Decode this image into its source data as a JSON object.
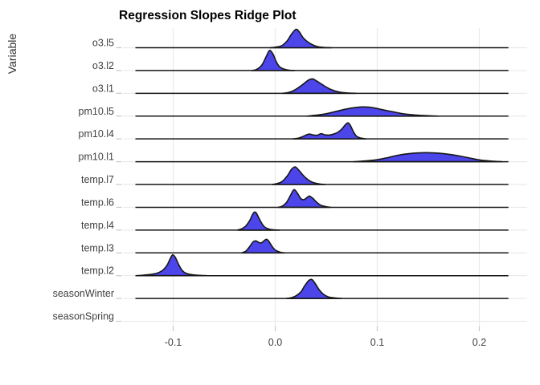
{
  "title": "Regression Slopes Ridge Plot",
  "y_axis_title": "Variable",
  "chart_data": {
    "type": "ridgeline",
    "title": "Regression Slopes Ridge Plot",
    "xlabel": "",
    "ylabel": "Variable",
    "legend_position": "none",
    "grid": true,
    "x_tick_values": [
      -0.1,
      0.0,
      0.1,
      0.2
    ],
    "x_tick_labels": [
      "-0.1",
      "0.0",
      "0.1",
      "0.2"
    ],
    "x_range": [
      -0.147,
      0.247
    ],
    "baseline_extent": [
      -0.137,
      0.2285
    ],
    "height_units": "px",
    "categories": [
      "o3.l5",
      "o3.l2",
      "o3.l1",
      "pm10.l5",
      "pm10.l4",
      "pm10.l1",
      "temp.l7",
      "temp.l6",
      "temp.l4",
      "temp.l3",
      "temp.l2",
      "seasonWinter",
      "seasonSpring"
    ],
    "colors": {
      "fill": "#4b45ea",
      "outline": "#161616",
      "grid": "#eaeaea",
      "tick": "#c8c8c8",
      "axis_text": "#3f3f3f",
      "title": "#000000",
      "background": "#ffffff"
    },
    "series": [
      {
        "name": "o3.l5",
        "peak_x": 0.02,
        "points": [
          [
            -0.005,
            0
          ],
          [
            0.001,
            0.8
          ],
          [
            0.007,
            3
          ],
          [
            0.012,
            9
          ],
          [
            0.016,
            17
          ],
          [
            0.0205,
            23
          ],
          [
            0.024,
            19
          ],
          [
            0.027,
            13
          ],
          [
            0.031,
            8
          ],
          [
            0.036,
            4
          ],
          [
            0.041,
            1.5
          ],
          [
            0.047,
            0.5
          ],
          [
            0.055,
            0
          ]
        ]
      },
      {
        "name": "o3.l2",
        "peak_x": -0.0055,
        "points": [
          [
            -0.023,
            0
          ],
          [
            -0.018,
            1.5
          ],
          [
            -0.013,
            7
          ],
          [
            -0.009,
            17
          ],
          [
            -0.0055,
            25
          ],
          [
            -0.002,
            20
          ],
          [
            0.001,
            11
          ],
          [
            0.004,
            5
          ],
          [
            0.008,
            2
          ],
          [
            0.013,
            0.5
          ],
          [
            0.019,
            0
          ]
        ]
      },
      {
        "name": "o3.l1",
        "peak_x": 0.0365,
        "points": [
          [
            0.007,
            0
          ],
          [
            0.013,
            1
          ],
          [
            0.019,
            4
          ],
          [
            0.026,
            10
          ],
          [
            0.032,
            16
          ],
          [
            0.0365,
            18
          ],
          [
            0.041,
            15
          ],
          [
            0.046,
            11
          ],
          [
            0.051,
            7
          ],
          [
            0.057,
            3.5
          ],
          [
            0.063,
            1.5
          ],
          [
            0.071,
            0.4
          ],
          [
            0.079,
            0
          ]
        ]
      },
      {
        "name": "pm10.l5",
        "peak_x": 0.088,
        "points": [
          [
            0.031,
            0
          ],
          [
            0.04,
            1.2
          ],
          [
            0.05,
            3
          ],
          [
            0.06,
            6
          ],
          [
            0.07,
            9
          ],
          [
            0.08,
            11
          ],
          [
            0.088,
            11.5
          ],
          [
            0.096,
            10.5
          ],
          [
            0.105,
            8
          ],
          [
            0.115,
            5.5
          ],
          [
            0.125,
            3
          ],
          [
            0.136,
            1.5
          ],
          [
            0.148,
            0.6
          ],
          [
            0.16,
            0
          ]
        ]
      },
      {
        "name": "pm10.l4",
        "peak_x": 0.0715,
        "points": [
          [
            0.017,
            0
          ],
          [
            0.023,
            1
          ],
          [
            0.028,
            3.5
          ],
          [
            0.033,
            6
          ],
          [
            0.037,
            5
          ],
          [
            0.041,
            4.5
          ],
          [
            0.045,
            6.5
          ],
          [
            0.049,
            5
          ],
          [
            0.053,
            4.8
          ],
          [
            0.057,
            6
          ],
          [
            0.061,
            8
          ],
          [
            0.065,
            12
          ],
          [
            0.069,
            18
          ],
          [
            0.0715,
            20
          ],
          [
            0.074,
            16
          ],
          [
            0.077,
            8
          ],
          [
            0.08,
            3
          ],
          [
            0.084,
            1
          ],
          [
            0.089,
            0
          ]
        ]
      },
      {
        "name": "pm10.l1",
        "peak_x": 0.151,
        "points": [
          [
            0.077,
            0
          ],
          [
            0.089,
            1
          ],
          [
            0.1,
            2.5
          ],
          [
            0.11,
            5
          ],
          [
            0.12,
            8
          ],
          [
            0.131,
            10
          ],
          [
            0.141,
            11
          ],
          [
            0.151,
            11.2
          ],
          [
            0.161,
            10.5
          ],
          [
            0.171,
            9
          ],
          [
            0.181,
            7
          ],
          [
            0.191,
            4.5
          ],
          [
            0.201,
            2
          ],
          [
            0.211,
            0.8
          ],
          [
            0.222,
            0
          ]
        ]
      },
      {
        "name": "temp.l7",
        "peak_x": 0.0195,
        "points": [
          [
            -0.003,
            0
          ],
          [
            0.002,
            1.2
          ],
          [
            0.007,
            4
          ],
          [
            0.012,
            11
          ],
          [
            0.016,
            19
          ],
          [
            0.0195,
            22
          ],
          [
            0.023,
            18
          ],
          [
            0.027,
            12
          ],
          [
            0.031,
            7
          ],
          [
            0.036,
            3
          ],
          [
            0.042,
            1
          ],
          [
            0.049,
            0
          ]
        ]
      },
      {
        "name": "temp.l6",
        "peak_x": 0.0185,
        "points": [
          [
            0.003,
            0
          ],
          [
            0.007,
            1.5
          ],
          [
            0.011,
            6
          ],
          [
            0.015,
            15
          ],
          [
            0.0185,
            22
          ],
          [
            0.022,
            17
          ],
          [
            0.025,
            11
          ],
          [
            0.028,
            9.5
          ],
          [
            0.031,
            12
          ],
          [
            0.0335,
            14
          ],
          [
            0.037,
            11
          ],
          [
            0.04,
            7
          ],
          [
            0.044,
            3
          ],
          [
            0.049,
            1
          ],
          [
            0.054,
            0
          ]
        ]
      },
      {
        "name": "temp.l4",
        "peak_x": -0.02,
        "points": [
          [
            -0.037,
            0
          ],
          [
            -0.033,
            1.5
          ],
          [
            -0.029,
            5
          ],
          [
            -0.025,
            12
          ],
          [
            -0.0215,
            21
          ],
          [
            -0.019,
            22
          ],
          [
            -0.016,
            15
          ],
          [
            -0.013,
            8
          ],
          [
            -0.01,
            3.5
          ],
          [
            -0.006,
            1.2
          ],
          [
            -0.001,
            0.3
          ],
          [
            0.004,
            0
          ]
        ]
      },
      {
        "name": "temp.l3",
        "peak_x": -0.0085,
        "points": [
          [
            -0.033,
            0
          ],
          [
            -0.029,
            2
          ],
          [
            -0.025,
            8
          ],
          [
            -0.0215,
            14
          ],
          [
            -0.019,
            15
          ],
          [
            -0.016,
            13
          ],
          [
            -0.0135,
            12.5
          ],
          [
            -0.011,
            15
          ],
          [
            -0.0085,
            17
          ],
          [
            -0.006,
            14
          ],
          [
            -0.003,
            8
          ],
          [
            0.0,
            3.5
          ],
          [
            0.004,
            1.2
          ],
          [
            0.009,
            0
          ]
        ]
      },
      {
        "name": "temp.l2",
        "peak_x": -0.1005,
        "points": [
          [
            -0.136,
            0
          ],
          [
            -0.128,
            0.8
          ],
          [
            -0.121,
            1.8
          ],
          [
            -0.115,
            3.5
          ],
          [
            -0.11,
            7
          ],
          [
            -0.106,
            13
          ],
          [
            -0.103,
            21
          ],
          [
            -0.1005,
            26
          ],
          [
            -0.098,
            23
          ],
          [
            -0.095,
            15
          ],
          [
            -0.092,
            8
          ],
          [
            -0.089,
            4
          ],
          [
            -0.085,
            2
          ],
          [
            -0.08,
            1
          ],
          [
            -0.074,
            0.4
          ],
          [
            -0.067,
            0
          ]
        ]
      },
      {
        "name": "seasonWinter",
        "peak_x": 0.036,
        "points": [
          [
            0.011,
            0
          ],
          [
            0.016,
            1
          ],
          [
            0.02,
            3
          ],
          [
            0.025,
            8
          ],
          [
            0.029,
            16
          ],
          [
            0.033,
            22.5
          ],
          [
            0.036,
            23.5
          ],
          [
            0.039,
            19
          ],
          [
            0.043,
            11
          ],
          [
            0.047,
            5.5
          ],
          [
            0.052,
            2
          ],
          [
            0.058,
            0.7
          ],
          [
            0.065,
            0
          ]
        ]
      },
      {
        "name": "seasonSpring",
        "peak_x": null,
        "points": []
      }
    ]
  }
}
